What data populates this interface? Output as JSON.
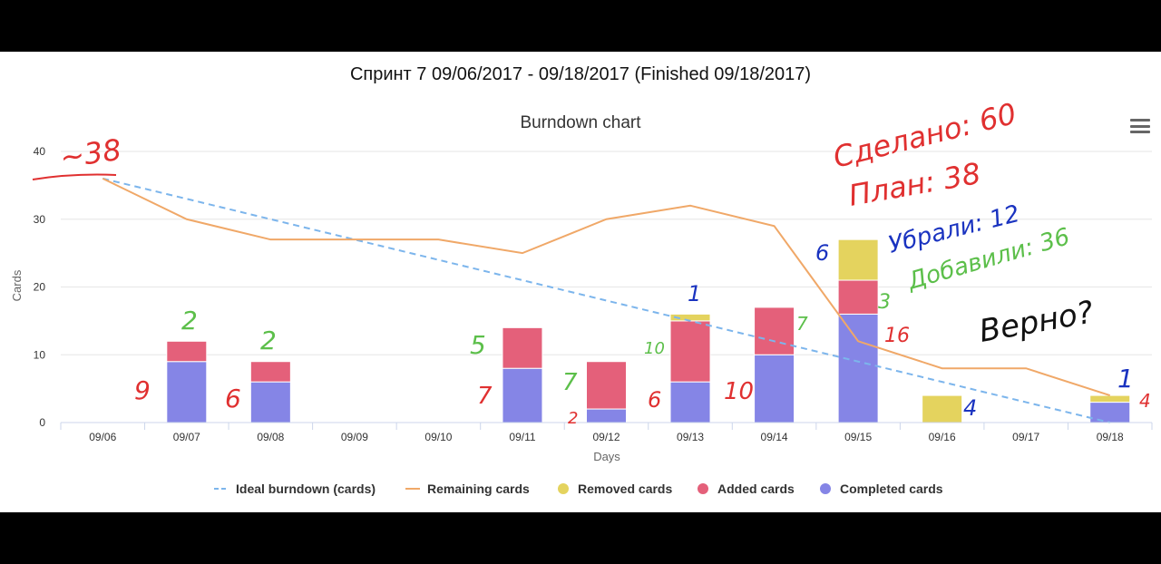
{
  "page": {
    "title": "Спринт 7 09/06/2017 - 09/18/2017 (Finished 09/18/2017)",
    "menu_icon": "hamburger-menu-icon"
  },
  "chart_data": {
    "type": "bar",
    "title": "Burndown chart",
    "xlabel": "Days",
    "ylabel": "Cards",
    "ylim": [
      0,
      40
    ],
    "yticks": [
      0,
      10,
      20,
      30,
      40
    ],
    "grid": true,
    "legend_position": "bottom",
    "categories": [
      "09/06",
      "09/07",
      "09/08",
      "09/09",
      "09/10",
      "09/11",
      "09/12",
      "09/13",
      "09/14",
      "09/15",
      "09/16",
      "09/17",
      "09/18"
    ],
    "series": [
      {
        "name": "Ideal burndown (cards)",
        "kind": "line",
        "style": "dashed",
        "color": "#7cb5ec",
        "values": [
          36,
          33,
          30,
          27,
          24,
          21,
          18,
          15,
          12,
          9,
          6,
          3,
          0
        ]
      },
      {
        "name": "Remaining cards",
        "kind": "line",
        "style": "solid",
        "color": "#f0a868",
        "values": [
          36,
          30,
          27,
          27,
          27,
          25,
          30,
          32,
          29,
          12,
          8,
          8,
          4
        ]
      },
      {
        "name": "Removed cards",
        "kind": "bar",
        "stack": 3,
        "color": "#e4d35e",
        "values": [
          0,
          0,
          0,
          0,
          0,
          0,
          0,
          1,
          0,
          6,
          4,
          0,
          1
        ]
      },
      {
        "name": "Added cards",
        "kind": "bar",
        "stack": 2,
        "color": "#e4607a",
        "values": [
          0,
          3,
          3,
          0,
          0,
          6,
          7,
          9,
          7,
          5,
          0,
          0,
          0
        ]
      },
      {
        "name": "Completed cards",
        "kind": "bar",
        "stack": 1,
        "color": "#8585e6",
        "values": [
          0,
          9,
          6,
          0,
          0,
          8,
          2,
          6,
          10,
          16,
          0,
          0,
          3
        ]
      }
    ],
    "annotations": [
      {
        "text": "~38",
        "color": "#e03030"
      },
      {
        "text": "Сделано: 60",
        "color": "#e03030"
      },
      {
        "text": "План: 38",
        "color": "#e03030"
      },
      {
        "text": "Убрали: 12",
        "color": "#1a33c0"
      },
      {
        "text": "Добавили: 36",
        "color": "#5cbf4a"
      },
      {
        "text": "Верно?",
        "color": "#111111"
      },
      {
        "text": "2",
        "color": "#5cbf4a"
      },
      {
        "text": "9",
        "color": "#e03030"
      },
      {
        "text": "2",
        "color": "#5cbf4a"
      },
      {
        "text": "6",
        "color": "#e03030"
      },
      {
        "text": "5",
        "color": "#5cbf4a"
      },
      {
        "text": "7",
        "color": "#e03030"
      },
      {
        "text": "7",
        "color": "#5cbf4a"
      },
      {
        "text": "2",
        "color": "#e03030"
      },
      {
        "text": "1",
        "color": "#1a33c0"
      },
      {
        "text": "10",
        "color": "#5cbf4a"
      },
      {
        "text": "6",
        "color": "#e03030"
      },
      {
        "text": "7",
        "color": "#5cbf4a"
      },
      {
        "text": "10",
        "color": "#e03030"
      },
      {
        "text": "6",
        "color": "#1a33c0"
      },
      {
        "text": "3",
        "color": "#5cbf4a"
      },
      {
        "text": "16",
        "color": "#e03030"
      },
      {
        "text": "4",
        "color": "#1a33c0"
      },
      {
        "text": "1",
        "color": "#1a33c0"
      },
      {
        "text": "4",
        "color": "#e03030"
      }
    ]
  }
}
